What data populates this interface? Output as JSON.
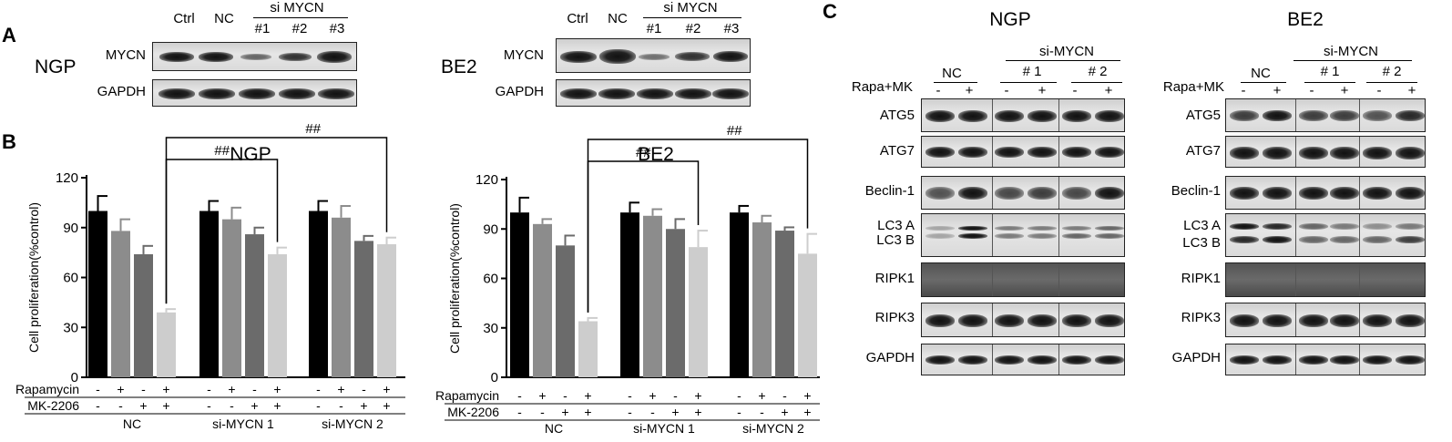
{
  "panels": {
    "A": "A",
    "B": "B",
    "C": "C"
  },
  "panelA": {
    "blots": [
      {
        "cell": "NGP",
        "lanes": [
          "Ctrl",
          "NC",
          "#1",
          "#2",
          "#3"
        ],
        "group": "si MYCN",
        "rows": [
          "MYCN",
          "GAPDH"
        ]
      },
      {
        "cell": "BE2",
        "lanes": [
          "Ctrl",
          "NC",
          "#1",
          "#2",
          "#3"
        ],
        "group": "si MYCN",
        "rows": [
          "MYCN",
          "GAPDH"
        ]
      }
    ]
  },
  "panelB": {
    "ylabel": "Cell proliferation(%control)",
    "treatment_rows": [
      "Rapamycin",
      "MK-2206"
    ],
    "rapamycin_signs": [
      "-",
      "+",
      "-",
      "+"
    ],
    "mk_signs": [
      "-",
      "-",
      "+",
      "+"
    ],
    "groups": [
      "NC",
      "si-MYCN 1",
      "si-MYCN 2"
    ],
    "sig_marks": [
      "##",
      "##"
    ],
    "colors": [
      "#000000",
      "#8c8c8c",
      "#6b6b6b",
      "#cdcdcd"
    ]
  },
  "chart_data": [
    {
      "type": "bar",
      "title": "NGP",
      "ylabel": "Cell proliferation(%control)",
      "ylim": [
        0,
        120
      ],
      "yticks": [
        0,
        30,
        60,
        90,
        120
      ],
      "groups": [
        "NC",
        "si-MYCN 1",
        "si-MYCN 2"
      ],
      "conditions": [
        {
          "Rapamycin": "-",
          "MK-2206": "-"
        },
        {
          "Rapamycin": "+",
          "MK-2206": "-"
        },
        {
          "Rapamycin": "-",
          "MK-2206": "+"
        },
        {
          "Rapamycin": "+",
          "MK-2206": "+"
        }
      ],
      "values": [
        [
          100,
          88,
          74,
          39
        ],
        [
          100,
          95,
          86,
          74
        ],
        [
          100,
          96,
          82,
          80
        ]
      ],
      "errors": [
        [
          9,
          7,
          5,
          2
        ],
        [
          6,
          7,
          4,
          4
        ],
        [
          6,
          7,
          3,
          4
        ]
      ],
      "significance": [
        {
          "from": [
            0,
            3
          ],
          "to": [
            1,
            3
          ],
          "label": "##"
        },
        {
          "from": [
            0,
            3
          ],
          "to": [
            2,
            3
          ],
          "label": "##"
        }
      ]
    },
    {
      "type": "bar",
      "title": "BE2",
      "ylabel": "Cell proliferation(%control)",
      "ylim": [
        0,
        120
      ],
      "yticks": [
        0,
        30,
        60,
        90,
        120
      ],
      "groups": [
        "NC",
        "si-MYCN 1",
        "si-MYCN 2"
      ],
      "conditions": [
        {
          "Rapamycin": "-",
          "MK-2206": "-"
        },
        {
          "Rapamycin": "+",
          "MK-2206": "-"
        },
        {
          "Rapamycin": "-",
          "MK-2206": "+"
        },
        {
          "Rapamycin": "+",
          "MK-2206": "+"
        }
      ],
      "values": [
        [
          100,
          93,
          80,
          34
        ],
        [
          100,
          98,
          90,
          79
        ],
        [
          100,
          94,
          89,
          75
        ]
      ],
      "errors": [
        [
          9,
          3,
          6,
          2
        ],
        [
          6,
          4,
          6,
          10
        ],
        [
          4,
          4,
          2,
          12
        ]
      ],
      "significance": [
        {
          "from": [
            0,
            3
          ],
          "to": [
            1,
            3
          ],
          "label": "##"
        },
        {
          "from": [
            0,
            3
          ],
          "to": [
            2,
            3
          ],
          "label": "##"
        }
      ]
    }
  ],
  "panelC": {
    "blots": [
      {
        "cell": "NGP"
      },
      {
        "cell": "BE2"
      }
    ],
    "group_label": "si-MYCN",
    "sub_groups": [
      "NC",
      "# 1",
      "# 2"
    ],
    "treatment": "Rapa+MK",
    "signs": [
      "-",
      "+"
    ],
    "rows": [
      "ATG5",
      "ATG7",
      "Beclin-1",
      "LC3 A",
      "LC3 B",
      "RIPK1",
      "RIPK3",
      "GAPDH"
    ]
  }
}
